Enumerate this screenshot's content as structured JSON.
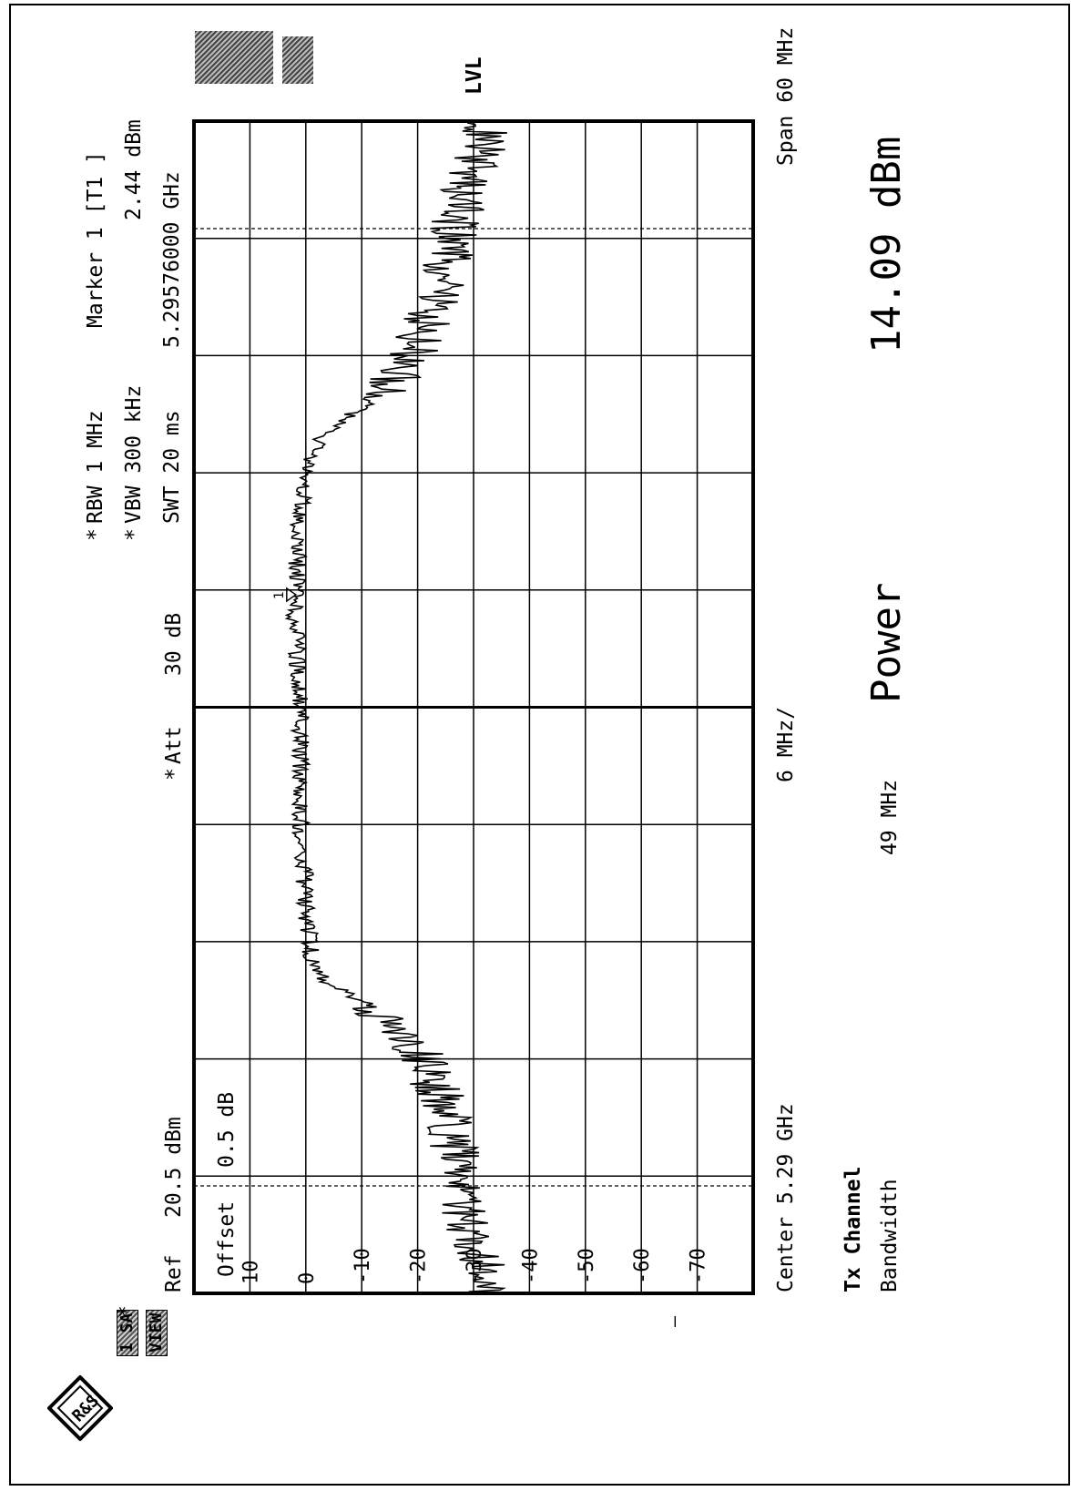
{
  "instrument": {
    "logo_icon": "rohde-schwarz-logo",
    "ref_label": "Ref",
    "ref_value": "20.5 dBm",
    "offset_label": "Offset",
    "offset_value": "0.5 dB",
    "att_prefix": "*",
    "att_label": "Att",
    "att_value": "30 dB",
    "rbw_prefix": "*",
    "rbw": "RBW 1 MHz",
    "vbw_prefix": "*",
    "vbw": "VBW 300 kHz",
    "swt": "SWT 20 ms",
    "marker_label": "Marker 1 [T1 ]",
    "marker_level": "2.44 dBm",
    "marker_freq": "5.29576000 GHz",
    "lvl_badge": "LVL",
    "side_badge_1": "1 SA",
    "side_badge_2": "VIEW",
    "side_star": "*",
    "center_label": "Center 5.29 GHz",
    "per_div_label": "6 MHz/",
    "span_label": "Span 60 MHz",
    "marker_symbol": "1"
  },
  "results": {
    "tx_channel_label": "Tx Channel",
    "bandwidth_label": "Bandwidth",
    "bandwidth_value": "49 MHz",
    "power_label": "Power",
    "power_value": "14.09 dBm"
  },
  "colors": {
    "trace": "#000000",
    "grid": "#000000",
    "badge_fill": "#8a8a8a"
  },
  "chart_data": {
    "type": "line",
    "title": "",
    "xlabel": "",
    "ylabel": "",
    "xlim": [
      5.26,
      5.32
    ],
    "ylim": [
      -80,
      20
    ],
    "x_unit": "GHz",
    "y_unit": "dBm",
    "grid": true,
    "y_tick_labels": [
      "10",
      "0",
      "-10",
      "-20",
      "-30",
      "-40",
      "-50",
      "-60",
      "-70"
    ],
    "y_tick_values": [
      10,
      0,
      -10,
      -20,
      -30,
      -40,
      -50,
      -60,
      -70
    ],
    "channel_lines_x": [
      5.2655,
      5.3145
    ],
    "series": [
      {
        "x": [
          5.26,
          5.262,
          5.264,
          5.266,
          5.268,
          5.27,
          5.2725,
          5.274,
          5.275,
          5.276,
          5.277,
          5.28,
          5.285,
          5.29,
          5.295,
          5.3,
          5.302,
          5.304,
          5.305,
          5.306,
          5.308,
          5.31,
          5.312,
          5.314,
          5.316,
          5.318,
          5.32
        ],
        "y": [
          -33,
          -31,
          -28,
          -29,
          -26,
          -24,
          -20,
          -15,
          -10,
          -3,
          -1,
          0,
          1,
          1,
          2,
          1,
          0,
          -3,
          -8,
          -14,
          -19,
          -22,
          -25,
          -26,
          -28,
          -31,
          -32
        ]
      }
    ],
    "marker": {
      "x": 5.29576,
      "y": 2.44,
      "label": "1"
    }
  }
}
